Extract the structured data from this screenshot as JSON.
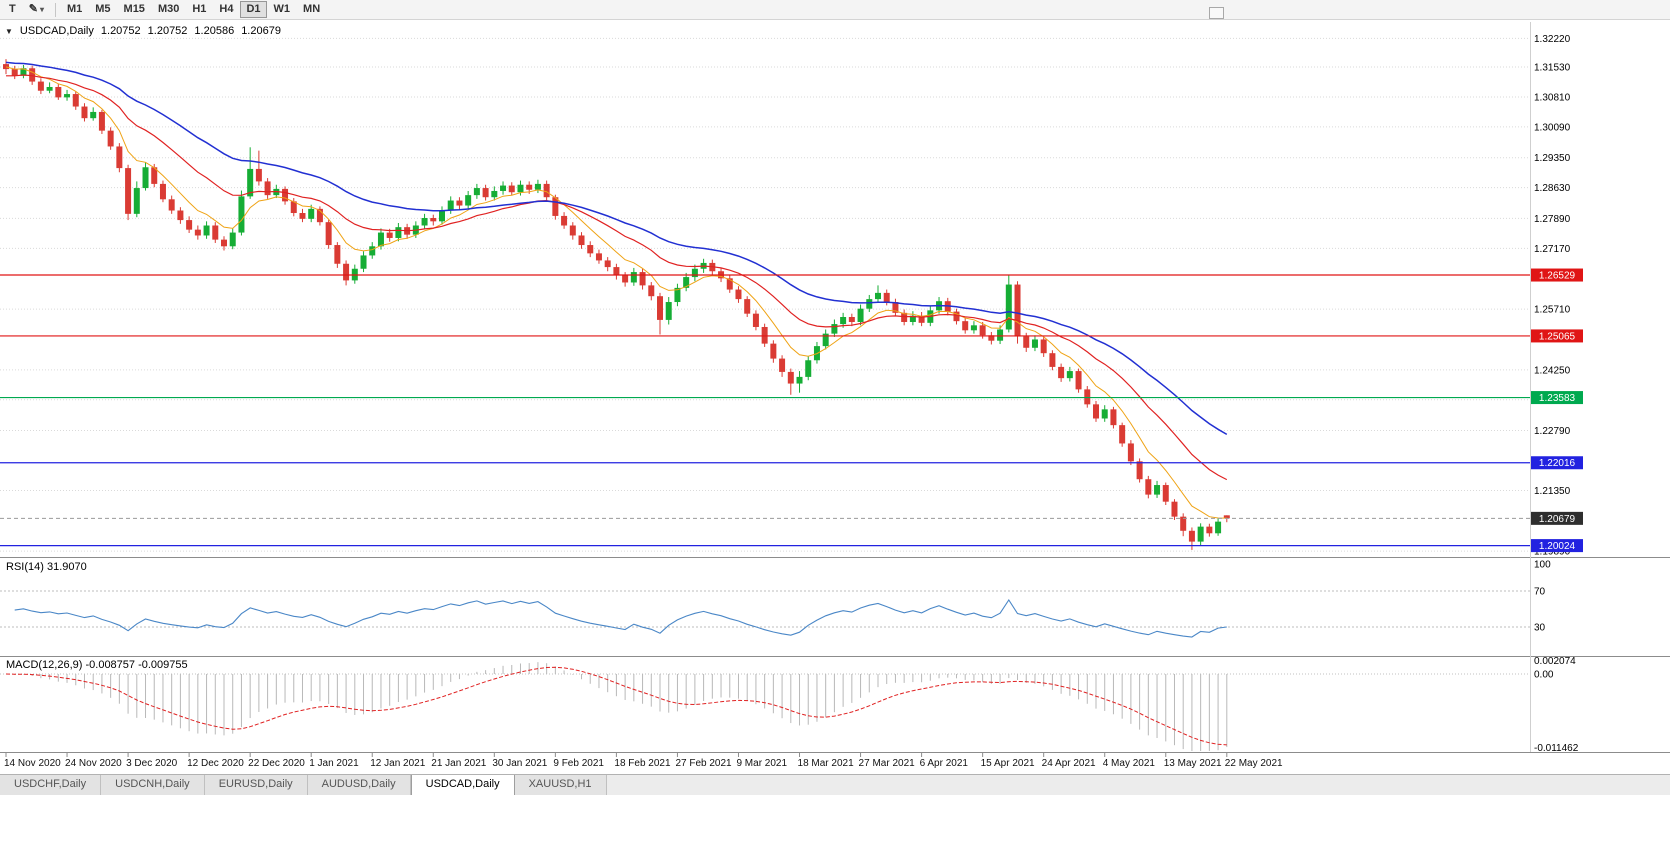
{
  "toolbar": {
    "text_tool": "T",
    "timeframes": [
      "M1",
      "M5",
      "M15",
      "M30",
      "H1",
      "H4",
      "D1",
      "W1",
      "MN"
    ],
    "active_timeframe": "D1"
  },
  "icons": {
    "pencil": "✎",
    "dropdown_arrow": "▾",
    "collapse_triangle": "▼"
  },
  "title": {
    "symbol": "USDCAD,Daily",
    "open": "1.20752",
    "high": "1.20752",
    "low": "1.20586",
    "close": "1.20679"
  },
  "price_axis": {
    "ticks": [
      "1.32220",
      "1.31530",
      "1.30810",
      "1.30090",
      "1.29350",
      "1.28630",
      "1.27890",
      "1.27170",
      "1.25710",
      "1.24250",
      "1.23530",
      "1.22790",
      "1.21350",
      "1.19890"
    ]
  },
  "rsi_panel": {
    "label": "RSI(14)",
    "value": "31.9070",
    "axis_labels": [
      "100",
      "70",
      "30"
    ],
    "levels": [
      70,
      30
    ],
    "line_color": "#4a87c7"
  },
  "macd_panel": {
    "label": "MACD(12,26,9)",
    "value": "-0.008757 -0.009755",
    "axis_top": "0.002074",
    "axis_zero": "0.00",
    "axis_bottom": "-0.011462",
    "histogram_color": "#b8b8b8",
    "signal_color": "#e02222"
  },
  "tabs": {
    "items": [
      "USDCHF,Daily",
      "USDCNH,Daily",
      "EURUSD,Daily",
      "AUDUSD,Daily",
      "USDCAD,Daily",
      "XAUUSD,H1"
    ],
    "active": "USDCAD,Daily"
  },
  "chart_data": {
    "type": "candlestick",
    "symbol": "USDCAD",
    "timeframe": "Daily",
    "ylim": [
      1.1975,
      1.3242
    ],
    "colors": {
      "up": "#16ad35",
      "down": "#da3b34",
      "ma_slow": "#2230d2",
      "ma_medium": "#e02222",
      "ma_fast": "#efa315"
    },
    "ma_lines": [
      {
        "name": "slow-ma",
        "period": 34,
        "color": "#2230d2"
      },
      {
        "name": "medium-ma",
        "period": 18,
        "color": "#e02222"
      },
      {
        "name": "fast-ma",
        "period": 7,
        "color": "#efa315"
      }
    ],
    "horizontal_levels": [
      {
        "price": 1.26529,
        "label": "1.26529",
        "color": "#e01515"
      },
      {
        "price": 1.25065,
        "label": "1.25065",
        "color": "#e01515"
      },
      {
        "price": 1.23583,
        "label": "1.23583",
        "color": "#00a94f"
      },
      {
        "price": 1.22016,
        "label": "1.22016",
        "color": "#2222e0"
      },
      {
        "price": 1.20024,
        "label": "1.20024",
        "color": "#2222e0"
      }
    ],
    "current_price": {
      "price": 1.20679,
      "label": "1.20679",
      "color": "#2e2e2e"
    },
    "indicators": [
      {
        "name": "RSI(14)",
        "last": 31.907
      },
      {
        "name": "MACD(12,26,9)",
        "last": [
          -0.008757,
          -0.009755
        ]
      }
    ],
    "x_labels": [
      "14 Nov 2020",
      "24 Nov 2020",
      "3 Dec 2020",
      "12 Dec 2020",
      "22 Dec 2020",
      "1 Jan 2021",
      "12 Jan 2021",
      "21 Jan 2021",
      "30 Jan 2021",
      "9 Feb 2021",
      "18 Feb 2021",
      "27 Feb 2021",
      "9 Mar 2021",
      "18 Mar 2021",
      "27 Mar 2021",
      "6 Apr 2021",
      "15 Apr 2021",
      "24 Apr 2021",
      "4 May 2021",
      "13 May 2021",
      "22 May 2021"
    ],
    "candles": [
      [
        1.316,
        1.3172,
        1.3136,
        1.3148
      ],
      [
        1.3148,
        1.3156,
        1.3124,
        1.3132
      ],
      [
        1.3132,
        1.3158,
        1.3126,
        1.315
      ],
      [
        1.315,
        1.3156,
        1.311,
        1.3118
      ],
      [
        1.3118,
        1.3126,
        1.3088,
        1.3096
      ],
      [
        1.3096,
        1.3116,
        1.309,
        1.3105
      ],
      [
        1.3105,
        1.3112,
        1.3074,
        1.308
      ],
      [
        1.308,
        1.3098,
        1.3072,
        1.3088
      ],
      [
        1.3088,
        1.3094,
        1.305,
        1.3058
      ],
      [
        1.3058,
        1.3066,
        1.3022,
        1.303
      ],
      [
        1.303,
        1.3056,
        1.3024,
        1.3045
      ],
      [
        1.3045,
        1.305,
        1.2992,
        1.3
      ],
      [
        1.3,
        1.3008,
        1.2954,
        1.2962
      ],
      [
        1.2962,
        1.297,
        1.29,
        1.291
      ],
      [
        1.291,
        1.2918,
        1.2785,
        1.28
      ],
      [
        1.28,
        1.2878,
        1.2792,
        1.2862
      ],
      [
        1.2862,
        1.2924,
        1.2856,
        1.2912
      ],
      [
        1.2912,
        1.292,
        1.2864,
        1.2872
      ],
      [
        1.2872,
        1.288,
        1.2828,
        1.2835
      ],
      [
        1.2835,
        1.2844,
        1.28,
        1.2808
      ],
      [
        1.2808,
        1.2816,
        1.2776,
        1.2785
      ],
      [
        1.2785,
        1.2794,
        1.2754,
        1.2762
      ],
      [
        1.2762,
        1.2772,
        1.2738,
        1.2748
      ],
      [
        1.2748,
        1.2782,
        1.274,
        1.2772
      ],
      [
        1.2772,
        1.278,
        1.273,
        1.2738
      ],
      [
        1.2738,
        1.2746,
        1.2712,
        1.2722
      ],
      [
        1.2722,
        1.2765,
        1.2715,
        1.2755
      ],
      [
        1.2755,
        1.2856,
        1.2748,
        1.2842
      ],
      [
        1.2842,
        1.296,
        1.2836,
        1.2908
      ],
      [
        1.2908,
        1.2952,
        1.2868,
        1.2878
      ],
      [
        1.2878,
        1.2886,
        1.2836,
        1.2845
      ],
      [
        1.2845,
        1.287,
        1.2838,
        1.286
      ],
      [
        1.286,
        1.2866,
        1.2822,
        1.283
      ],
      [
        1.283,
        1.2838,
        1.2794,
        1.2802
      ],
      [
        1.2802,
        1.2812,
        1.278,
        1.2788
      ],
      [
        1.2788,
        1.2822,
        1.278,
        1.2812
      ],
      [
        1.2812,
        1.2818,
        1.2772,
        1.278
      ],
      [
        1.278,
        1.2786,
        1.2716,
        1.2725
      ],
      [
        1.2725,
        1.2732,
        1.267,
        1.268
      ],
      [
        1.268,
        1.2688,
        1.2628,
        1.264
      ],
      [
        1.264,
        1.2678,
        1.2632,
        1.2668
      ],
      [
        1.2668,
        1.271,
        1.266,
        1.27
      ],
      [
        1.27,
        1.2732,
        1.2692,
        1.2722
      ],
      [
        1.2722,
        1.2765,
        1.2714,
        1.2755
      ],
      [
        1.2755,
        1.2764,
        1.2733,
        1.2742
      ],
      [
        1.2742,
        1.2778,
        1.2734,
        1.2768
      ],
      [
        1.2768,
        1.2776,
        1.274,
        1.275
      ],
      [
        1.275,
        1.2782,
        1.2742,
        1.2772
      ],
      [
        1.2772,
        1.28,
        1.2764,
        1.279
      ],
      [
        1.279,
        1.2798,
        1.2772,
        1.2782
      ],
      [
        1.2782,
        1.2818,
        1.2774,
        1.2808
      ],
      [
        1.2808,
        1.2842,
        1.28,
        1.2832
      ],
      [
        1.2832,
        1.284,
        1.281,
        1.282
      ],
      [
        1.282,
        1.2855,
        1.2812,
        1.2845
      ],
      [
        1.2845,
        1.2872,
        1.2836,
        1.2862
      ],
      [
        1.2862,
        1.287,
        1.2832,
        1.284
      ],
      [
        1.284,
        1.2866,
        1.2832,
        1.2855
      ],
      [
        1.2855,
        1.2878,
        1.2846,
        1.2868
      ],
      [
        1.2868,
        1.2876,
        1.2844,
        1.2852
      ],
      [
        1.2852,
        1.288,
        1.2844,
        1.287
      ],
      [
        1.287,
        1.2878,
        1.2848,
        1.2858
      ],
      [
        1.2858,
        1.2882,
        1.285,
        1.2872
      ],
      [
        1.2872,
        1.288,
        1.2832,
        1.284
      ],
      [
        1.284,
        1.2846,
        1.2786,
        1.2795
      ],
      [
        1.2795,
        1.2804,
        1.2764,
        1.2772
      ],
      [
        1.2772,
        1.278,
        1.2738,
        1.2748
      ],
      [
        1.2748,
        1.2756,
        1.2716,
        1.2725
      ],
      [
        1.2725,
        1.2734,
        1.2696,
        1.2705
      ],
      [
        1.2705,
        1.2714,
        1.268,
        1.2688
      ],
      [
        1.2688,
        1.2696,
        1.2662,
        1.2672
      ],
      [
        1.2672,
        1.268,
        1.2642,
        1.2652
      ],
      [
        1.2652,
        1.266,
        1.2625,
        1.2635
      ],
      [
        1.2635,
        1.267,
        1.2627,
        1.266
      ],
      [
        1.266,
        1.2668,
        1.2618,
        1.2628
      ],
      [
        1.2628,
        1.2636,
        1.2592,
        1.2602
      ],
      [
        1.2602,
        1.261,
        1.251,
        1.2545
      ],
      [
        1.2545,
        1.26,
        1.2534,
        1.2588
      ],
      [
        1.2588,
        1.2632,
        1.2578,
        1.2622
      ],
      [
        1.2622,
        1.2658,
        1.2614,
        1.2648
      ],
      [
        1.2648,
        1.2678,
        1.2638,
        1.2668
      ],
      [
        1.2668,
        1.2692,
        1.2658,
        1.2682
      ],
      [
        1.2682,
        1.269,
        1.2654,
        1.2662
      ],
      [
        1.2662,
        1.267,
        1.2636,
        1.2645
      ],
      [
        1.2645,
        1.2652,
        1.261,
        1.2618
      ],
      [
        1.2618,
        1.2626,
        1.2586,
        1.2595
      ],
      [
        1.2595,
        1.2602,
        1.2552,
        1.256
      ],
      [
        1.256,
        1.2568,
        1.252,
        1.2528
      ],
      [
        1.2528,
        1.2536,
        1.248,
        1.2488
      ],
      [
        1.2488,
        1.2496,
        1.2442,
        1.2452
      ],
      [
        1.2452,
        1.246,
        1.2408,
        1.242
      ],
      [
        1.242,
        1.2428,
        1.2365,
        1.2392
      ],
      [
        1.2392,
        1.2422,
        1.237,
        1.2408
      ],
      [
        1.2408,
        1.2458,
        1.24,
        1.2448
      ],
      [
        1.2448,
        1.2492,
        1.244,
        1.2482
      ],
      [
        1.2482,
        1.2522,
        1.2474,
        1.2512
      ],
      [
        1.2512,
        1.2546,
        1.2504,
        1.2535
      ],
      [
        1.2535,
        1.2562,
        1.2526,
        1.2552
      ],
      [
        1.2552,
        1.256,
        1.253,
        1.254
      ],
      [
        1.254,
        1.2582,
        1.2532,
        1.2572
      ],
      [
        1.2572,
        1.2605,
        1.2564,
        1.2595
      ],
      [
        1.2595,
        1.2628,
        1.2586,
        1.261
      ],
      [
        1.261,
        1.2618,
        1.258,
        1.2588
      ],
      [
        1.2588,
        1.2596,
        1.2554,
        1.2562
      ],
      [
        1.2562,
        1.257,
        1.2532,
        1.254
      ],
      [
        1.254,
        1.2566,
        1.2532,
        1.2555
      ],
      [
        1.2555,
        1.2564,
        1.253,
        1.2538
      ],
      [
        1.2538,
        1.2578,
        1.253,
        1.2568
      ],
      [
        1.2568,
        1.26,
        1.256,
        1.259
      ],
      [
        1.259,
        1.2598,
        1.2556,
        1.2565
      ],
      [
        1.2565,
        1.2572,
        1.2534,
        1.2542
      ],
      [
        1.2542,
        1.255,
        1.2512,
        1.252
      ],
      [
        1.252,
        1.2542,
        1.2512,
        1.2532
      ],
      [
        1.2532,
        1.254,
        1.25,
        1.2508
      ],
      [
        1.2508,
        1.2516,
        1.2486,
        1.2495
      ],
      [
        1.2495,
        1.2532,
        1.2487,
        1.2522
      ],
      [
        1.2522,
        1.2654,
        1.2515,
        1.263
      ],
      [
        1.263,
        1.2638,
        1.2488,
        1.2505
      ],
      [
        1.2505,
        1.2514,
        1.2468,
        1.2478
      ],
      [
        1.2478,
        1.2508,
        1.247,
        1.2498
      ],
      [
        1.2498,
        1.2504,
        1.2456,
        1.2465
      ],
      [
        1.2465,
        1.2472,
        1.2424,
        1.2432
      ],
      [
        1.2432,
        1.244,
        1.2396,
        1.2405
      ],
      [
        1.2405,
        1.2432,
        1.2397,
        1.2422
      ],
      [
        1.2422,
        1.2428,
        1.237,
        1.2378
      ],
      [
        1.2378,
        1.2386,
        1.2334,
        1.2342
      ],
      [
        1.2342,
        1.235,
        1.23,
        1.2308
      ],
      [
        1.2308,
        1.234,
        1.23,
        1.233
      ],
      [
        1.233,
        1.2336,
        1.2284,
        1.2292
      ],
      [
        1.2292,
        1.2298,
        1.224,
        1.2248
      ],
      [
        1.2248,
        1.2256,
        1.2196,
        1.2205
      ],
      [
        1.2205,
        1.2212,
        1.2154,
        1.2162
      ],
      [
        1.2162,
        1.217,
        1.2116,
        1.2125
      ],
      [
        1.2125,
        1.2158,
        1.2117,
        1.2148
      ],
      [
        1.2148,
        1.2154,
        1.21,
        1.2108
      ],
      [
        1.2108,
        1.2114,
        1.2064,
        1.2072
      ],
      [
        1.2072,
        1.208,
        1.2025,
        1.2038
      ],
      [
        1.2038,
        1.2046,
        1.1992,
        1.2012
      ],
      [
        1.2012,
        1.2056,
        1.2002,
        1.2048
      ],
      [
        1.2048,
        1.2055,
        1.2024,
        1.2032
      ],
      [
        1.2032,
        1.2068,
        1.2026,
        1.206
      ],
      [
        1.20752,
        1.20752,
        1.20586,
        1.20679
      ]
    ]
  }
}
